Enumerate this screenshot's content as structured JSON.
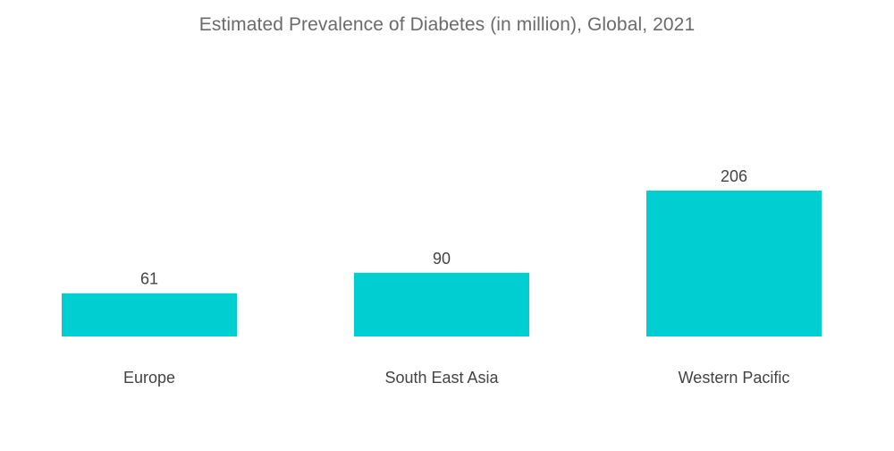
{
  "chart_data": {
    "type": "bar",
    "title": "Estimated Prevalence of Diabetes (in million), Global, 2021",
    "categories": [
      "Europe",
      "South East Asia",
      "Western Pacific"
    ],
    "values": [
      61,
      90,
      206
    ],
    "xlabel": "",
    "ylabel": "",
    "ylim": [
      0,
      206
    ],
    "grid": false,
    "legend": "none",
    "colors": {
      "bar": "#00CED1",
      "title": "#6b6b6b",
      "label": "#444444"
    }
  }
}
